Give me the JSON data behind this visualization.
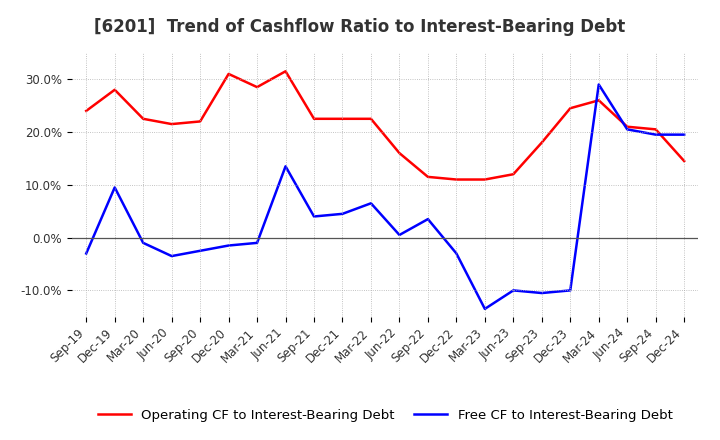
{
  "title": "[6201]  Trend of Cashflow Ratio to Interest-Bearing Debt",
  "x_labels": [
    "Sep-19",
    "Dec-19",
    "Mar-20",
    "Jun-20",
    "Sep-20",
    "Dec-20",
    "Mar-21",
    "Jun-21",
    "Sep-21",
    "Dec-21",
    "Mar-22",
    "Jun-22",
    "Sep-22",
    "Dec-22",
    "Mar-23",
    "Jun-23",
    "Sep-23",
    "Dec-23",
    "Mar-24",
    "Jun-24",
    "Sep-24",
    "Dec-24"
  ],
  "operating_cf": [
    24.0,
    28.0,
    22.5,
    21.5,
    22.0,
    31.0,
    28.5,
    31.5,
    22.5,
    22.5,
    22.5,
    16.0,
    11.5,
    11.0,
    11.0,
    12.0,
    18.0,
    24.5,
    26.0,
    21.0,
    20.5,
    14.5
  ],
  "free_cf": [
    -3.0,
    9.5,
    -1.0,
    -3.5,
    -2.5,
    -1.5,
    -1.0,
    13.5,
    4.0,
    4.5,
    6.5,
    0.5,
    3.5,
    -3.0,
    -13.5,
    -10.0,
    -10.5,
    -10.0,
    29.0,
    20.5,
    19.5,
    19.5
  ],
  "ylim": [
    -15,
    35
  ],
  "yticks": [
    -10.0,
    0.0,
    10.0,
    20.0,
    30.0
  ],
  "ytick_labels": [
    "-10.0%",
    "0.0%",
    "10.0%",
    "20.0%",
    "30.0%"
  ],
  "operating_color": "#ff0000",
  "free_color": "#0000ff",
  "background_color": "#ffffff",
  "grid_color": "#b0b0b0",
  "legend_operating": "Operating CF to Interest-Bearing Debt",
  "legend_free": "Free CF to Interest-Bearing Debt",
  "title_fontsize": 12,
  "axis_fontsize": 8.5,
  "legend_fontsize": 9.5
}
